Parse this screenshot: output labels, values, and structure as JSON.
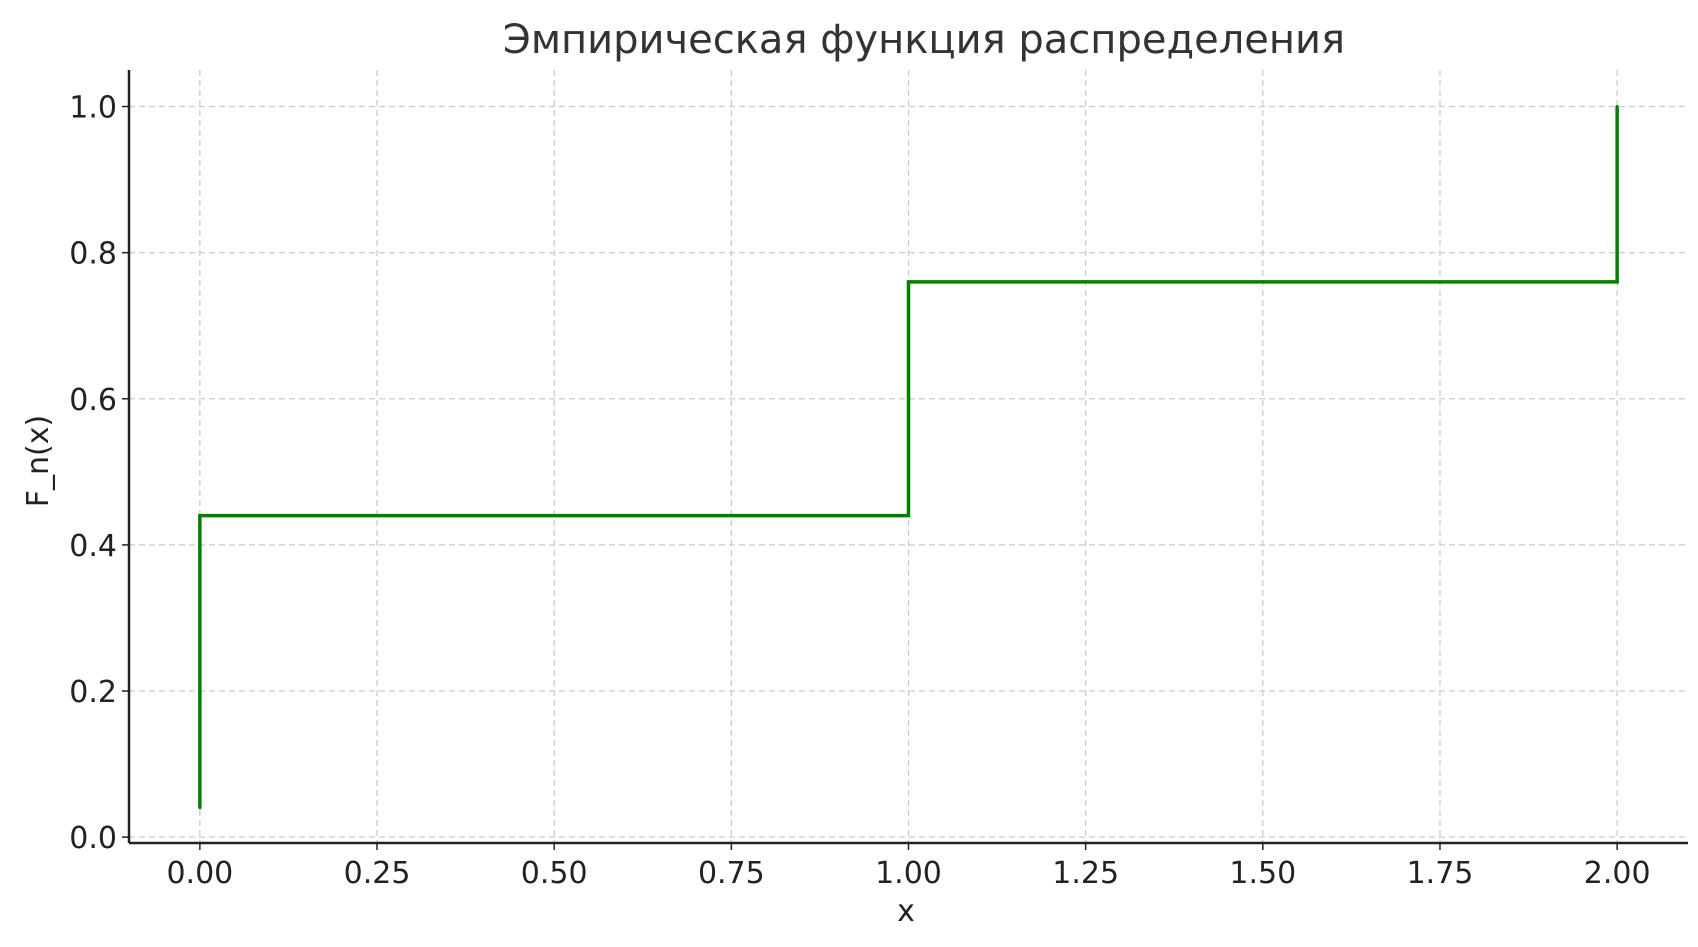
{
  "chart_data": {
    "type": "line",
    "drawstyle": "steps-post",
    "title": "Эмпирическая функция распределения",
    "xlabel": "x",
    "ylabel": "F_n(x)",
    "xlim": [
      -0.1,
      2.1
    ],
    "ylim": [
      -0.008,
      1.05
    ],
    "x_ticks": [
      0.0,
      0.25,
      0.5,
      0.75,
      1.0,
      1.25,
      1.5,
      1.75,
      2.0
    ],
    "x_tick_labels": [
      "0.00",
      "0.25",
      "0.50",
      "0.75",
      "1.00",
      "1.25",
      "1.50",
      "1.75",
      "2.00"
    ],
    "y_ticks": [
      0.0,
      0.2,
      0.4,
      0.6,
      0.8,
      1.0
    ],
    "y_tick_labels": [
      "0.0",
      "0.2",
      "0.4",
      "0.6",
      "0.8",
      "1.0"
    ],
    "grid": true,
    "series": [
      {
        "name": "F_n(x)",
        "color": "#008000",
        "points": [
          {
            "x": 0.0,
            "y": 0.04
          },
          {
            "x": 0.0,
            "y": 0.44
          },
          {
            "x": 1.0,
            "y": 0.44
          },
          {
            "x": 1.0,
            "y": 0.76
          },
          {
            "x": 2.0,
            "y": 0.76
          },
          {
            "x": 2.0,
            "y": 1.0
          }
        ]
      }
    ]
  }
}
